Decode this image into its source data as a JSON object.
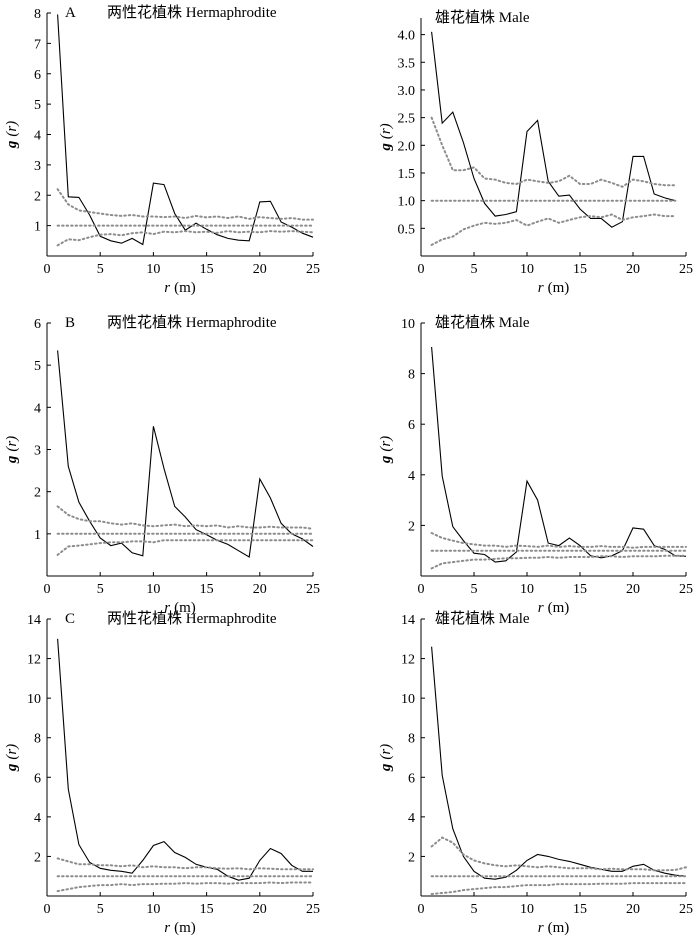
{
  "chart_data": [
    {
      "type": "line",
      "panel_letter": "A",
      "title": "两性花植株 Hermaphrodite",
      "xlabel_var": "r",
      "xlabel_unit": "(m)",
      "ylabel_var": "g",
      "ylabel_arg": "(r)",
      "xlim": [
        0,
        25
      ],
      "ylim": [
        0,
        8
      ],
      "xticks": [
        0,
        5,
        10,
        15,
        20,
        25
      ],
      "yticks": [
        1,
        2,
        3,
        4,
        5,
        6,
        7,
        8
      ],
      "x": [
        1,
        2,
        3,
        4,
        5,
        6,
        7,
        8,
        9,
        10,
        11,
        12,
        13,
        14,
        15,
        16,
        17,
        18,
        19,
        20,
        21,
        22,
        23,
        24,
        25
      ],
      "series": [
        {
          "style": "solid",
          "values": [
            7.95,
            1.95,
            1.93,
            1.35,
            0.65,
            0.5,
            0.42,
            0.58,
            0.38,
            2.4,
            2.35,
            1.4,
            0.85,
            1.08,
            0.88,
            0.7,
            0.58,
            0.52,
            0.5,
            1.78,
            1.8,
            1.12,
            0.95,
            0.75,
            0.62
          ]
        },
        {
          "style": "dotted",
          "values": [
            2.2,
            1.7,
            1.5,
            1.45,
            1.4,
            1.35,
            1.32,
            1.35,
            1.3,
            1.3,
            1.28,
            1.3,
            1.25,
            1.32,
            1.27,
            1.3,
            1.25,
            1.3,
            1.22,
            1.28,
            1.25,
            1.22,
            1.25,
            1.2,
            1.2
          ]
        },
        {
          "style": "dotted",
          "values": [
            1.0,
            1.0,
            1.0,
            1.0,
            1.0,
            1.0,
            1.0,
            1.0,
            1.0,
            1.0,
            1.0,
            1.0,
            1.0,
            1.0,
            1.0,
            1.0,
            1.0,
            1.0,
            1.0,
            1.0,
            1.0,
            1.0,
            1.0,
            1.0,
            1.0
          ]
        },
        {
          "style": "dotted",
          "values": [
            0.35,
            0.55,
            0.52,
            0.62,
            0.7,
            0.72,
            0.68,
            0.75,
            0.78,
            0.72,
            0.8,
            0.78,
            0.82,
            0.78,
            0.8,
            0.76,
            0.82,
            0.78,
            0.8,
            0.78,
            0.82,
            0.8,
            0.82,
            0.8,
            0.78
          ]
        }
      ]
    },
    {
      "type": "line",
      "panel_letter": "",
      "title": "雄花植株 Male",
      "xlabel_var": "r",
      "xlabel_unit": "(m)",
      "ylabel_var": "g",
      "ylabel_arg": "(r)",
      "xlim": [
        0,
        25
      ],
      "ylim": [
        0,
        4.3
      ],
      "xticks": [
        0,
        5,
        10,
        15,
        20,
        25
      ],
      "yticks": [
        0.5,
        1.0,
        1.5,
        2.0,
        2.5,
        3.0,
        3.5,
        4.0
      ],
      "ytick_labels": [
        "0.5",
        "1.0",
        "1.5",
        "2.0",
        "2.5",
        "3.0",
        "3.5",
        "4.0"
      ],
      "x": [
        1,
        2,
        3,
        4,
        5,
        6,
        7,
        8,
        9,
        10,
        11,
        12,
        13,
        14,
        15,
        16,
        17,
        18,
        19,
        20,
        21,
        22,
        23,
        24
      ],
      "series": [
        {
          "style": "solid",
          "values": [
            4.05,
            2.4,
            2.6,
            2.05,
            1.4,
            0.95,
            0.72,
            0.75,
            0.8,
            2.25,
            2.45,
            1.35,
            1.08,
            1.1,
            0.85,
            0.68,
            0.68,
            0.52,
            0.62,
            1.8,
            1.8,
            1.12,
            1.05,
            1.0
          ]
        },
        {
          "style": "dotted",
          "values": [
            2.5,
            2.0,
            1.55,
            1.55,
            1.6,
            1.4,
            1.38,
            1.32,
            1.3,
            1.38,
            1.35,
            1.32,
            1.35,
            1.45,
            1.3,
            1.3,
            1.38,
            1.32,
            1.25,
            1.38,
            1.35,
            1.3,
            1.28,
            1.28
          ]
        },
        {
          "style": "dotted",
          "values": [
            1.0,
            1.0,
            1.0,
            1.0,
            1.0,
            1.0,
            1.0,
            1.0,
            1.0,
            1.0,
            1.0,
            1.0,
            1.0,
            1.0,
            1.0,
            1.0,
            1.0,
            1.0,
            1.0,
            1.0,
            1.0,
            1.0,
            1.0,
            1.0
          ]
        },
        {
          "style": "dotted",
          "values": [
            0.2,
            0.3,
            0.35,
            0.48,
            0.55,
            0.6,
            0.58,
            0.6,
            0.65,
            0.55,
            0.62,
            0.68,
            0.6,
            0.65,
            0.7,
            0.72,
            0.7,
            0.75,
            0.65,
            0.7,
            0.72,
            0.75,
            0.72,
            0.72
          ]
        }
      ]
    },
    {
      "type": "line",
      "panel_letter": "B",
      "title": "两性花植株 Hermaphrodite",
      "xlabel_var": "r",
      "xlabel_unit": "(m)",
      "ylabel_var": "g",
      "ylabel_arg": "(r)",
      "xlim": [
        0,
        25
      ],
      "ylim": [
        0,
        6
      ],
      "xticks": [
        0,
        5,
        10,
        15,
        20,
        25
      ],
      "yticks": [
        1,
        2,
        3,
        4,
        5,
        6
      ],
      "x": [
        1,
        2,
        3,
        4,
        5,
        6,
        7,
        8,
        9,
        10,
        11,
        12,
        13,
        14,
        15,
        16,
        17,
        18,
        19,
        20,
        21,
        22,
        23,
        24,
        25
      ],
      "series": [
        {
          "style": "solid",
          "values": [
            5.35,
            2.6,
            1.75,
            1.3,
            0.9,
            0.72,
            0.78,
            0.55,
            0.48,
            3.55,
            2.55,
            1.65,
            1.4,
            1.1,
            0.98,
            0.85,
            0.75,
            0.6,
            0.45,
            2.3,
            1.85,
            1.25,
            1.0,
            0.88,
            0.7
          ]
        },
        {
          "style": "dotted",
          "values": [
            1.65,
            1.45,
            1.35,
            1.3,
            1.3,
            1.25,
            1.22,
            1.25,
            1.2,
            1.18,
            1.2,
            1.22,
            1.18,
            1.2,
            1.18,
            1.2,
            1.15,
            1.18,
            1.15,
            1.15,
            1.17,
            1.15,
            1.15,
            1.15,
            1.12
          ]
        },
        {
          "style": "dotted",
          "values": [
            1.0,
            1.0,
            1.0,
            1.0,
            1.0,
            1.0,
            1.0,
            1.0,
            1.0,
            1.0,
            1.0,
            1.0,
            1.0,
            1.0,
            1.0,
            1.0,
            1.0,
            1.0,
            1.0,
            1.0,
            1.0,
            1.0,
            1.0,
            1.0,
            1.0
          ]
        },
        {
          "style": "dotted",
          "values": [
            0.5,
            0.7,
            0.72,
            0.75,
            0.78,
            0.8,
            0.8,
            0.82,
            0.82,
            0.8,
            0.85,
            0.85,
            0.85,
            0.85,
            0.85,
            0.85,
            0.85,
            0.85,
            0.85,
            0.85,
            0.85,
            0.85,
            0.85,
            0.85,
            0.85
          ]
        }
      ]
    },
    {
      "type": "line",
      "panel_letter": "",
      "title": "雄花植株 Male",
      "xlabel_var": "r",
      "xlabel_unit": "(m)",
      "ylabel_var": "g",
      "ylabel_arg": "(r)",
      "xlim": [
        0,
        25
      ],
      "ylim": [
        0,
        10
      ],
      "xticks": [
        0,
        5,
        10,
        15,
        20,
        25
      ],
      "yticks": [
        2,
        4,
        6,
        8,
        10
      ],
      "x": [
        1,
        2,
        3,
        4,
        5,
        6,
        7,
        8,
        9,
        10,
        11,
        12,
        13,
        14,
        15,
        16,
        17,
        18,
        19,
        20,
        21,
        22,
        23,
        24,
        25
      ],
      "series": [
        {
          "style": "solid",
          "values": [
            9.05,
            3.95,
            1.95,
            1.4,
            0.9,
            0.85,
            0.55,
            0.6,
            0.95,
            3.75,
            3.0,
            1.3,
            1.2,
            1.5,
            1.2,
            0.8,
            0.72,
            0.8,
            1.0,
            1.9,
            1.85,
            1.2,
            1.05,
            0.8,
            0.78
          ]
        },
        {
          "style": "dotted",
          "values": [
            1.7,
            1.5,
            1.4,
            1.3,
            1.25,
            1.2,
            1.2,
            1.15,
            1.2,
            1.18,
            1.15,
            1.2,
            1.15,
            1.18,
            1.15,
            1.15,
            1.18,
            1.15,
            1.15,
            1.12,
            1.15,
            1.15,
            1.15,
            1.15,
            1.15
          ]
        },
        {
          "style": "dotted",
          "values": [
            1.0,
            1.0,
            1.0,
            1.0,
            1.0,
            1.0,
            1.0,
            1.0,
            1.0,
            1.0,
            1.0,
            1.0,
            1.0,
            1.0,
            1.0,
            1.0,
            1.0,
            1.0,
            1.0,
            1.0,
            1.0,
            1.0,
            1.0,
            1.0,
            1.0
          ]
        },
        {
          "style": "dotted",
          "values": [
            0.3,
            0.5,
            0.55,
            0.6,
            0.65,
            0.65,
            0.68,
            0.7,
            0.7,
            0.72,
            0.72,
            0.75,
            0.72,
            0.75,
            0.75,
            0.75,
            0.78,
            0.78,
            0.75,
            0.78,
            0.78,
            0.78,
            0.8,
            0.8,
            0.8
          ]
        }
      ]
    },
    {
      "type": "line",
      "panel_letter": "C",
      "title": "两性花植株 Hermaphrodite",
      "xlabel_var": "r",
      "xlabel_unit": "(m)",
      "ylabel_var": "g",
      "ylabel_arg": "(r)",
      "xlim": [
        0,
        25
      ],
      "ylim": [
        0,
        14
      ],
      "xticks": [
        0,
        5,
        10,
        15,
        20,
        25
      ],
      "yticks": [
        2,
        4,
        6,
        8,
        10,
        12,
        14
      ],
      "x": [
        1,
        2,
        3,
        4,
        5,
        6,
        7,
        8,
        9,
        10,
        11,
        12,
        13,
        14,
        15,
        16,
        17,
        18,
        19,
        20,
        21,
        22,
        23,
        24,
        25
      ],
      "series": [
        {
          "style": "solid",
          "values": [
            13.0,
            5.4,
            2.6,
            1.7,
            1.4,
            1.3,
            1.25,
            1.15,
            1.8,
            2.55,
            2.75,
            2.2,
            1.95,
            1.6,
            1.45,
            1.35,
            1.0,
            0.8,
            0.9,
            1.8,
            2.4,
            2.15,
            1.55,
            1.25,
            1.25
          ]
        },
        {
          "style": "dotted",
          "values": [
            1.9,
            1.75,
            1.6,
            1.6,
            1.55,
            1.55,
            1.5,
            1.55,
            1.45,
            1.5,
            1.45,
            1.45,
            1.4,
            1.45,
            1.45,
            1.4,
            1.38,
            1.4,
            1.35,
            1.4,
            1.38,
            1.35,
            1.35,
            1.35,
            1.35
          ]
        },
        {
          "style": "dotted",
          "values": [
            1.0,
            1.0,
            1.0,
            1.0,
            1.0,
            1.0,
            1.0,
            1.0,
            1.0,
            1.0,
            1.0,
            1.0,
            1.0,
            1.0,
            1.0,
            1.0,
            1.0,
            1.0,
            1.0,
            1.0,
            1.0,
            1.0,
            1.0,
            1.0,
            1.0
          ]
        },
        {
          "style": "dotted",
          "values": [
            0.25,
            0.35,
            0.45,
            0.5,
            0.55,
            0.55,
            0.6,
            0.55,
            0.6,
            0.6,
            0.62,
            0.62,
            0.65,
            0.62,
            0.65,
            0.65,
            0.62,
            0.65,
            0.65,
            0.65,
            0.68,
            0.65,
            0.68,
            0.68,
            0.68
          ]
        }
      ]
    },
    {
      "type": "line",
      "panel_letter": "",
      "title": "雄花植株 Male",
      "xlabel_var": "r",
      "xlabel_unit": "(m)",
      "ylabel_var": "g",
      "ylabel_arg": "(r)",
      "xlim": [
        0,
        25
      ],
      "ylim": [
        0,
        14
      ],
      "xticks": [
        0,
        5,
        10,
        15,
        20,
        25
      ],
      "yticks": [
        2,
        4,
        6,
        8,
        10,
        12,
        14
      ],
      "x": [
        1,
        2,
        3,
        4,
        5,
        6,
        7,
        8,
        9,
        10,
        11,
        12,
        13,
        14,
        15,
        16,
        17,
        18,
        19,
        20,
        21,
        22,
        23,
        24,
        25
      ],
      "series": [
        {
          "style": "solid",
          "values": [
            12.6,
            6.1,
            3.4,
            2.0,
            1.25,
            0.9,
            0.85,
            0.95,
            1.3,
            1.8,
            2.1,
            2.0,
            1.85,
            1.75,
            1.6,
            1.45,
            1.35,
            1.25,
            1.25,
            1.5,
            1.6,
            1.3,
            1.15,
            1.05,
            1.0
          ]
        },
        {
          "style": "dotted",
          "values": [
            2.5,
            2.95,
            2.7,
            2.1,
            1.8,
            1.65,
            1.55,
            1.5,
            1.55,
            1.5,
            1.45,
            1.5,
            1.45,
            1.4,
            1.4,
            1.4,
            1.35,
            1.38,
            1.35,
            1.35,
            1.35,
            1.3,
            1.3,
            1.32,
            1.45
          ]
        },
        {
          "style": "dotted",
          "values": [
            1.0,
            1.0,
            1.0,
            1.0,
            1.0,
            1.0,
            1.0,
            1.0,
            1.0,
            1.0,
            1.0,
            1.0,
            1.0,
            1.0,
            1.0,
            1.0,
            1.0,
            1.0,
            1.0,
            1.0,
            1.0,
            1.0,
            1.0,
            1.0,
            1.0
          ]
        },
        {
          "style": "dotted",
          "values": [
            0.1,
            0.15,
            0.2,
            0.3,
            0.35,
            0.4,
            0.45,
            0.45,
            0.5,
            0.55,
            0.55,
            0.55,
            0.6,
            0.6,
            0.6,
            0.6,
            0.62,
            0.62,
            0.62,
            0.65,
            0.65,
            0.65,
            0.65,
            0.65,
            0.65
          ]
        }
      ]
    }
  ]
}
